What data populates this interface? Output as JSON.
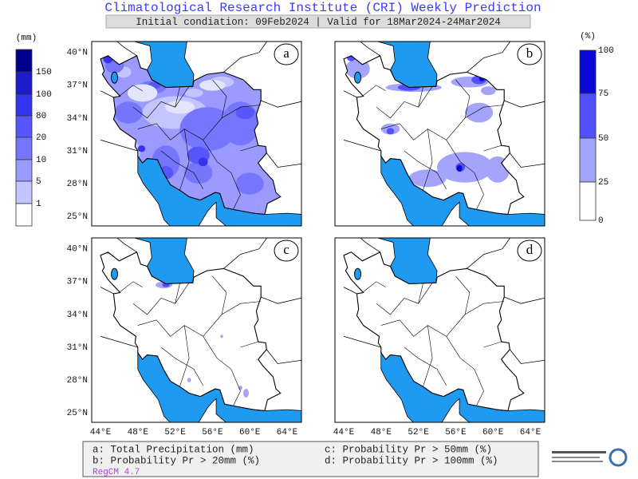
{
  "header": {
    "title": "Climatological Research Institute (CRI) Weekly Prediction",
    "subtitle": "Initial condiation: 09Feb2024 | Valid for 18Mar2024-24Mar2024"
  },
  "legend_mm": {
    "unit": "(mm)",
    "labels": [
      150,
      100,
      80,
      20,
      10,
      5,
      1
    ],
    "colors": [
      "#00008c",
      "#1c1cc8",
      "#3434ee",
      "#5656fa",
      "#7676fd",
      "#9a9aff",
      "#c4c4ff",
      "#e4e4fb",
      "#ffffff"
    ]
  },
  "legend_pct": {
    "unit": "(%)",
    "labels": [
      100,
      75,
      50,
      25,
      0
    ],
    "colors": [
      "#0808d8",
      "#5050ff",
      "#a4a4fd",
      "#ffffff"
    ]
  },
  "panels": [
    {
      "label": "a"
    },
    {
      "label": "b"
    },
    {
      "label": "c"
    },
    {
      "label": "d"
    }
  ],
  "lat_labels": [
    "40°N",
    "37°N",
    "34°N",
    "31°N",
    "28°N",
    "25°N"
  ],
  "lon_labels": [
    "44°E",
    "48°E",
    "52°E",
    "56°E",
    "60°E",
    "64°E"
  ],
  "footer": {
    "lines": [
      "a: Total Precipitation (mm)",
      "b: Probability Pr > 20mm (%)",
      "c: Probability Pr > 50mm (%)",
      "d: Probability Pr > 100mm (%)"
    ],
    "model": "RegCM 4.7"
  }
}
